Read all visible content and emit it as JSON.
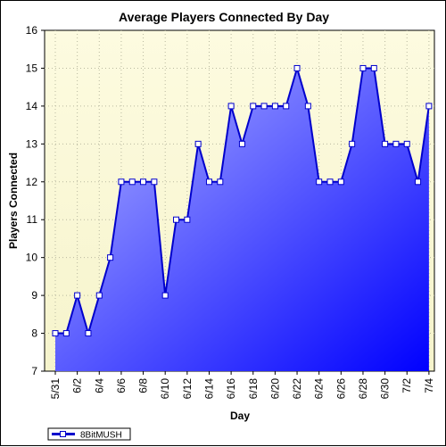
{
  "chart_data": {
    "type": "area",
    "title": "Average Players Connected By Day",
    "xlabel": "Day",
    "ylabel": "Players Connected",
    "ylim": [
      7,
      16
    ],
    "yticks": [
      "7",
      "8",
      "9",
      "10",
      "11",
      "12",
      "13",
      "14",
      "15",
      "16"
    ],
    "grid": true,
    "legend_position": "bottom-left",
    "x": [
      "5/31",
      "6/1",
      "6/2",
      "6/3",
      "6/4",
      "6/5",
      "6/6",
      "6/7",
      "6/8",
      "6/9",
      "6/10",
      "6/11",
      "6/12",
      "6/13",
      "6/14",
      "6/15",
      "6/16",
      "6/17",
      "6/18",
      "6/19",
      "6/20",
      "6/21",
      "6/22",
      "6/23",
      "6/24",
      "6/25",
      "6/26",
      "6/27",
      "6/28",
      "6/29",
      "6/30",
      "7/1",
      "7/2",
      "7/3",
      "7/4"
    ],
    "x_tick_labels": [
      "5/31",
      "6/2",
      "6/4",
      "6/6",
      "6/8",
      "6/10",
      "6/12",
      "6/14",
      "6/16",
      "6/18",
      "6/20",
      "6/22",
      "6/24",
      "6/26",
      "6/28",
      "6/30",
      "7/2",
      "7/4"
    ],
    "series": [
      {
        "name": "8BitMUSH",
        "values": [
          8,
          8,
          9,
          8,
          9,
          10,
          12,
          12,
          12,
          12,
          9,
          11,
          11,
          13,
          12,
          12,
          14,
          13,
          14,
          14,
          14,
          14,
          15,
          14,
          12,
          12,
          12,
          13,
          15,
          15,
          13,
          13,
          13,
          12,
          14
        ]
      }
    ],
    "colors": {
      "plot_bg_top": "#fdfbe0",
      "plot_bg_bottom": "#f6f4cc",
      "grid": "#b9b9a0",
      "line": "#0000cc",
      "fill_top_left": "#b4b8ff",
      "fill_bottom_right": "#0000ff",
      "marker_fill": "#ffffff",
      "marker_stroke": "#0000cc"
    }
  }
}
